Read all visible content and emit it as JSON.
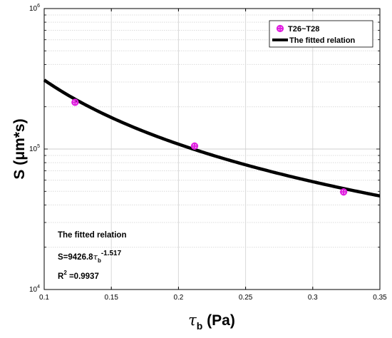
{
  "chart_data": {
    "type": "scatter",
    "xlabel": {
      "main": "τ",
      "sub": "b",
      "rest": " (Pa)"
    },
    "ylabel": "S (μm*s)",
    "xlim": [
      0.1,
      0.35
    ],
    "ylim": [
      10000,
      1000000
    ],
    "yscale": "log",
    "grid": true,
    "x_ticks": [
      0.1,
      0.15,
      0.2,
      0.25,
      0.3,
      0.35
    ],
    "x_tick_labels": [
      "0.1",
      "0.15",
      "0.2",
      "0.25",
      "0.3",
      "0.35"
    ],
    "y_ticks": [
      {
        "value": 10000,
        "base": "10",
        "exp": "4"
      },
      {
        "value": 100000,
        "base": "10",
        "exp": "5"
      },
      {
        "value": 1000000,
        "base": "10",
        "exp": "6"
      }
    ],
    "legend_position": "top-right",
    "series": [
      {
        "name": "T26~T28",
        "kind": "scatter",
        "marker": "circle-cross",
        "color": "#e020e0",
        "x": [
          0.123,
          0.212,
          0.323
        ],
        "y": [
          215000,
          105000,
          49500
        ]
      },
      {
        "name": "The fitted relation",
        "kind": "line",
        "color": "#000000",
        "coefficient": 9426.8,
        "exponent": -1.517
      }
    ],
    "annotation": {
      "title": "The fitted relation",
      "eq_prefix": "S=9426.8",
      "eq_tau": "τ",
      "eq_sub": "b",
      "eq_exp": "-1.517",
      "r2_prefix": "R",
      "r2_exp": "2",
      "r2_rest": " =0.9937"
    }
  }
}
